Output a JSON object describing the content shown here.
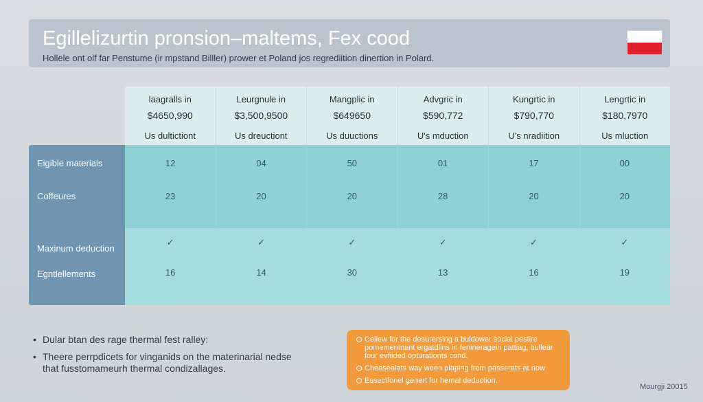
{
  "header": {
    "title": "Egillelizurtin pronsion–maltems, Fex cood",
    "subtitle": "Hollele ont olf far Penstume (ir mpstand Billler) prower et Poland jos regrediition dinertion in Polard.",
    "flag_colors": [
      "#ffffff",
      "#e0202e"
    ]
  },
  "table": {
    "columns": [
      {
        "name": "laagralls in",
        "amount": "$4650,990",
        "note": "Us dultictiont"
      },
      {
        "name": "Leurgnule in",
        "amount": "$3,500,9500",
        "note": "Us dreuctiont"
      },
      {
        "name": "Mangplic in",
        "amount": "$649650",
        "note": "Us duuctions"
      },
      {
        "name": "Advgric in",
        "amount": "$590,772",
        "note": "U's mduction"
      },
      {
        "name": "Kungrtic in",
        "amount": "$790,770",
        "note": "U's nradiition"
      },
      {
        "name": "Lengrtic in",
        "amount": "$180,7970",
        "note": "Us mluction"
      }
    ],
    "rows": [
      {
        "label": "Eigible materials",
        "values": [
          "12",
          "04",
          "50",
          "01",
          "17",
          "00"
        ]
      },
      {
        "label": "Coffeures",
        "values": [
          "23",
          "20",
          "20",
          "28",
          "20",
          "20"
        ]
      },
      {
        "label": "Maxinum deduction",
        "values": [
          "✓",
          "✓",
          "✓",
          "✓",
          "✓",
          "✓"
        ]
      },
      {
        "label": "Egntlellements",
        "values": [
          "16",
          "14",
          "30",
          "13",
          "16",
          "19"
        ]
      }
    ]
  },
  "notes": [
    "Dular btan des rage thermal fest ralley:",
    "Theere perrpdicets for vinganids on the materinarial nedse that fusstomameurh thermal condizallages."
  ],
  "callout": {
    "items": [
      "Cellew for the desurersing a buldower social pestire pomementnant ergatdlins in fenineragein pattiag, bullear four evfilded opturationts cond.",
      "Cheasealats way ween plaping frem passerats at now",
      "Essectfonel genert for hemal deduction."
    ],
    "color": "#f29a3c"
  },
  "footer": {
    "text": "Mourgji 20015"
  }
}
